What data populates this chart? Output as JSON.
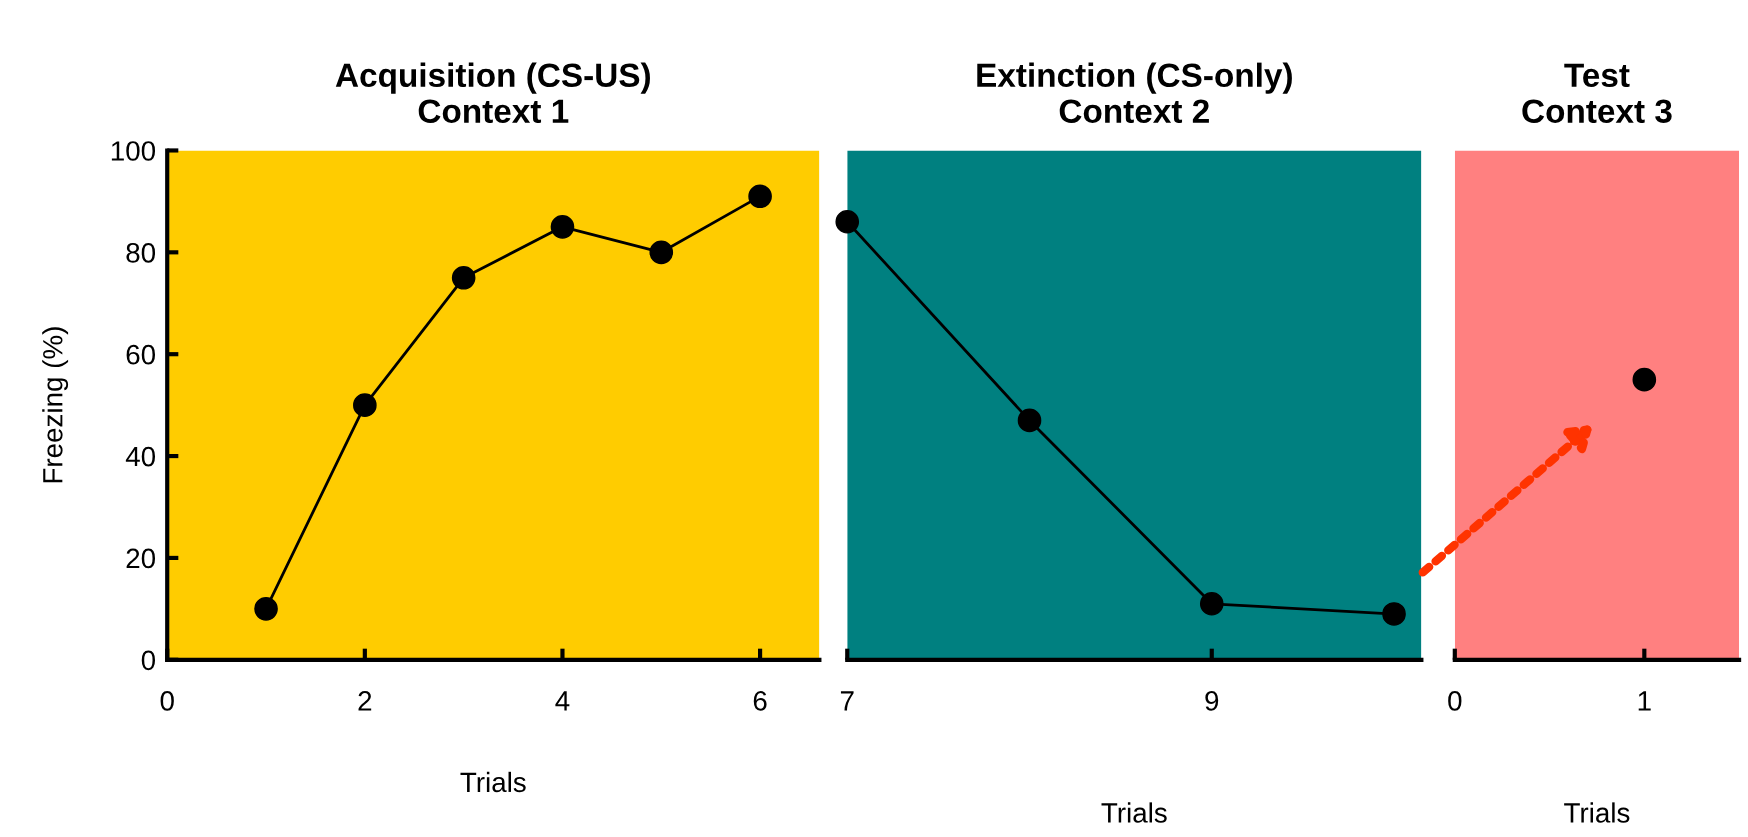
{
  "chart_data": [
    {
      "type": "line",
      "title": "Acquisition (CS-US)\nContext 1",
      "xlabel": "Trials",
      "ylabel": "Freezing (%)",
      "x": [
        1,
        2,
        3,
        4,
        5,
        6
      ],
      "series": [
        {
          "color": "#000000",
          "values": [
            10,
            50,
            75,
            85,
            80,
            91
          ]
        }
      ],
      "xlim": [
        0,
        6.6
      ],
      "xticks": [
        0,
        2,
        4,
        6
      ],
      "ylim": [
        0,
        100
      ],
      "yticks": [
        0,
        20,
        40,
        60,
        80,
        100
      ],
      "marker": "circle",
      "grid": false,
      "legend": false,
      "bands": [
        {
          "axis": "x",
          "from": 0,
          "to": 6.6,
          "color": "#ffcc00"
        }
      ]
    },
    {
      "type": "line",
      "title": "Extinction (CS-only)\nContext 2",
      "xlabel": "Trials",
      "x": [
        7,
        8,
        9,
        10
      ],
      "series": [
        {
          "color": "#000000",
          "values": [
            86,
            47,
            11,
            9
          ]
        }
      ],
      "xlim": [
        7,
        10.15
      ],
      "xticks": [
        7,
        9
      ],
      "ylim": [
        0,
        100
      ],
      "tick_labels": "x",
      "marker": "circle",
      "grid": false,
      "legend": false,
      "bands": [
        {
          "axis": "x",
          "from": 7,
          "to": 10.15,
          "color": "#008080"
        }
      ]
    },
    {
      "type": "scatter",
      "title": "Test\nContext 3",
      "xlabel": "Trials",
      "x": [
        1
      ],
      "series": [
        {
          "color": "#000000",
          "values": [
            55
          ]
        }
      ],
      "xlim": [
        0,
        1.5
      ],
      "xticks": [
        0,
        1
      ],
      "ylim": [
        0,
        100
      ],
      "tick_labels": "x",
      "marker": "circle",
      "grid": false,
      "legend": false,
      "bands": [
        {
          "axis": "x",
          "from": 0,
          "to": 1.5,
          "color": "#ff8080"
        }
      ]
    }
  ]
}
